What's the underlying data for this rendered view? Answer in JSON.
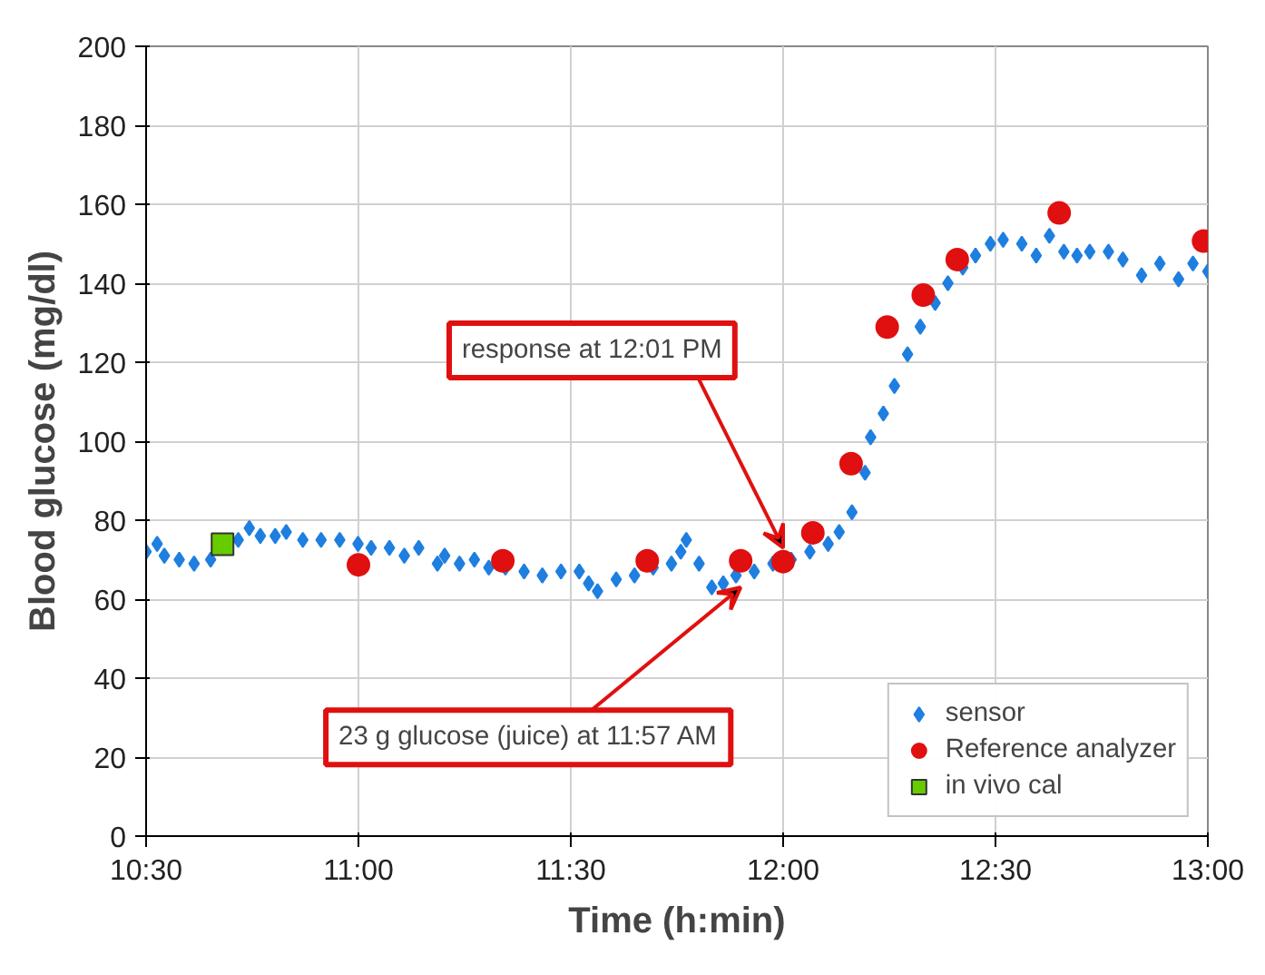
{
  "chart_data": {
    "type": "scatter",
    "xlabel": "Time (h:min)",
    "ylabel": "Blood glucose (mg/dl)",
    "xlim": [
      10.5,
      13.0
    ],
    "xticks": [
      {
        "value": 10.5,
        "label": "10:30"
      },
      {
        "value": 11.0,
        "label": "11:00"
      },
      {
        "value": 11.5,
        "label": "11:30"
      },
      {
        "value": 12.0,
        "label": "12:00"
      },
      {
        "value": 12.5,
        "label": "12:30"
      },
      {
        "value": 13.0,
        "label": "13:00"
      }
    ],
    "ylim": [
      0,
      200
    ],
    "yticks": [
      0,
      20,
      40,
      60,
      80,
      100,
      120,
      140,
      160,
      180,
      200
    ],
    "grid": true,
    "legend": "bottom right",
    "series": [
      {
        "name": "sensor",
        "color": "#1f7fe0",
        "marker": "diamond",
        "x": [
          10.5,
          10.526,
          10.543,
          10.578,
          10.613,
          10.652,
          10.678,
          10.717,
          10.743,
          10.769,
          10.804,
          10.83,
          10.869,
          10.912,
          10.956,
          10.999,
          11.03,
          11.073,
          11.108,
          11.142,
          11.186,
          11.203,
          11.238,
          11.273,
          11.307,
          11.346,
          11.39,
          11.433,
          11.477,
          11.52,
          11.542,
          11.563,
          11.607,
          11.65,
          11.694,
          11.737,
          11.759,
          11.772,
          11.802,
          11.832,
          11.859,
          11.889,
          11.932,
          11.976,
          12.019,
          12.063,
          12.106,
          12.132,
          12.162,
          12.193,
          12.206,
          12.236,
          12.262,
          12.293,
          12.323,
          12.358,
          12.388,
          12.423,
          12.453,
          12.488,
          12.518,
          12.562,
          12.596,
          12.627,
          12.661,
          12.692,
          12.722,
          12.766,
          12.8,
          12.844,
          12.887,
          12.931,
          12.965,
          13.0
        ],
        "values": [
          72,
          74,
          71,
          70,
          69,
          70,
          null,
          75,
          78,
          76,
          76,
          77,
          75,
          75,
          75,
          74,
          73,
          73,
          71,
          73,
          69,
          71,
          69,
          70,
          68,
          68,
          67,
          66,
          67,
          67,
          64,
          62,
          65,
          66,
          68,
          69,
          72,
          75,
          69,
          63,
          64,
          66,
          67,
          69,
          70,
          72,
          74,
          77,
          82,
          92,
          101,
          107,
          114,
          122,
          129,
          135,
          140,
          144,
          147,
          150,
          151,
          150,
          147,
          152,
          148,
          147,
          148,
          148,
          146,
          142,
          145,
          141,
          145,
          143
        ]
      },
      {
        "name": "Reference analyzer",
        "color": "#e01010",
        "marker": "circle",
        "x": [
          11.0,
          11.34,
          11.68,
          11.9,
          12.0,
          12.07,
          12.16,
          12.245,
          12.33,
          12.41,
          12.65,
          12.99
        ],
        "values": [
          68.7,
          69.7,
          69.7,
          69.7,
          69.5,
          76.8,
          94.3,
          128.9,
          137,
          146,
          157.8,
          150.7
        ]
      },
      {
        "name": "in vivo cal",
        "color": "#66cc00",
        "marker": "square",
        "x": [
          10.68
        ],
        "values": [
          73.9
        ]
      }
    ],
    "annotations": [
      {
        "text": "response at 12:01 PM",
        "x": 12.0,
        "y": 73
      },
      {
        "text": "23 g glucose (juice) at 11:57 AM",
        "x": 11.9,
        "y": 63
      }
    ]
  }
}
